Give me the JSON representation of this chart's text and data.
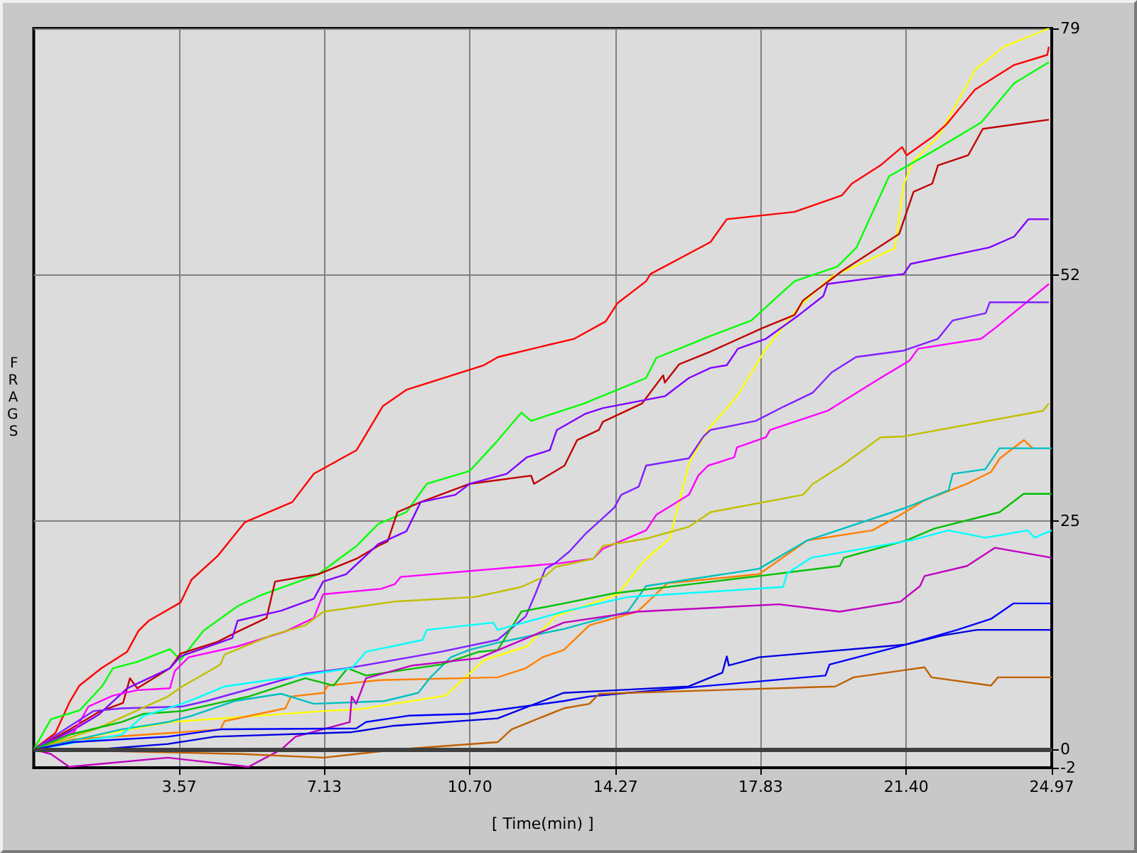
{
  "chart_data": {
    "type": "line",
    "xlabel": "[ Time(min) ]",
    "ylabel": "FRAGS",
    "xlim": [
      0,
      24.97
    ],
    "xticks": [
      3.57,
      7.13,
      {
        "value": 10.7,
        "label": "10.70"
      },
      14.27,
      17.83,
      {
        "value": 21.4,
        "label": "21.40"
      },
      24.97
    ],
    "ylim": [
      -2,
      79
    ],
    "yticks": [
      -2,
      0,
      25,
      52,
      79
    ],
    "grid": true,
    "line_style": "solid",
    "ref_lines": [
      {
        "axis": "y",
        "value": 0,
        "color": "#404040"
      }
    ],
    "series": [
      {
        "color": "#ffff00",
        "x": [
          0,
          0.99,
          3.35,
          7.1,
          7.98,
          10.1,
          11.05,
          12.1,
          12.8,
          14.32,
          15.0,
          15.6,
          16.07,
          16.53,
          17.25,
          17.96,
          18.77,
          19.57,
          21.12,
          21.34,
          21.58,
          22.18,
          23.1,
          23.8,
          24.9
        ],
        "values": [
          0,
          1.1,
          3.0,
          4.2,
          4.4,
          5.9,
          9.8,
          11.3,
          14.6,
          17.0,
          20.8,
          23.1,
          31.3,
          35.0,
          38.7,
          43.9,
          48.5,
          51.8,
          54.9,
          61.9,
          64.5,
          67.1,
          74.5,
          77,
          79
        ]
      },
      {
        "color": "#ff0000",
        "x": [
          0,
          0.53,
          0.88,
          1.12,
          1.66,
          2.29,
          2.57,
          2.82,
          3.6,
          3.87,
          4.51,
          5.18,
          6.34,
          6.87,
          7.92,
          8.56,
          9.14,
          11.04,
          11.39,
          13.26,
          14.03,
          14.32,
          15.02,
          15.13,
          15.97,
          16.6,
          17.0,
          18.66,
          19.82,
          20.07,
          20.77,
          21.3,
          21.41,
          22.04,
          22.39,
          23.09,
          24.05,
          24.86,
          24.9
        ],
        "values": [
          0,
          1.8,
          5.2,
          7.0,
          8.9,
          10.7,
          13.0,
          14.1,
          16.1,
          18.6,
          21.2,
          24.9,
          27.1,
          30.2,
          32.8,
          37.6,
          39.4,
          42.1,
          43.0,
          45.0,
          46.9,
          48.9,
          51.3,
          52.1,
          54.1,
          55.6,
          58.1,
          58.9,
          60.7,
          62.0,
          64.0,
          66.0,
          65.1,
          67.1,
          68.5,
          72.3,
          75.0,
          76.1,
          77
        ]
      },
      {
        "color": "#00ff00",
        "x": [
          0,
          0.42,
          1.13,
          1.69,
          1.94,
          2.54,
          3.34,
          3.6,
          4.16,
          5.0,
          5.57,
          6.98,
          7.92,
          8.45,
          9.14,
          9.64,
          10.69,
          11.33,
          11.96,
          12.2,
          13.5,
          15.02,
          15.27,
          15.83,
          16.6,
          17.6,
          18.66,
          19.71,
          20.18,
          20.98,
          22.04,
          23.24,
          24.05,
          24.9
        ],
        "values": [
          0,
          3.3,
          4.3,
          7.0,
          8.9,
          9.6,
          11.0,
          9.8,
          13.0,
          15.7,
          16.9,
          19.2,
          22.3,
          24.7,
          26.0,
          29.1,
          30.5,
          33.6,
          36.9,
          36.0,
          37.9,
          40.7,
          42.9,
          43.9,
          45.3,
          47.0,
          51.3,
          52.9,
          55.0,
          62.8,
          65.5,
          68.7,
          73.0,
          75.3
        ]
      },
      {
        "color": "#c00000",
        "x": [
          0,
          0.89,
          1.59,
          2.19,
          2.36,
          2.54,
          3.34,
          3.6,
          4.51,
          5.0,
          5.71,
          5.92,
          6.98,
          7.92,
          8.45,
          8.68,
          8.92,
          9.49,
          10.69,
          12.2,
          12.27,
          13.02,
          13.33,
          13.86,
          13.96,
          14.92,
          15.44,
          15.48,
          15.83,
          16.6,
          17.89,
          18.66,
          18.87,
          19.82,
          21.23,
          21.58,
          22.04,
          22.18,
          22.92,
          23.28,
          24.9
        ],
        "values": [
          0,
          2.2,
          4.1,
          5.1,
          7.8,
          6.7,
          8.9,
          10.5,
          11.8,
          12.9,
          14.4,
          18.4,
          19.2,
          20.9,
          22.3,
          22.8,
          26.0,
          27.1,
          29.1,
          30.0,
          29.1,
          31.1,
          33.9,
          35.0,
          35.9,
          37.9,
          41.0,
          40.2,
          42.2,
          43.6,
          46.2,
          47.6,
          49.2,
          52.4,
          56.5,
          61.1,
          62.0,
          64.0,
          65.1,
          68.0,
          69.0
        ]
      },
      {
        "color": "#8000ff",
        "x": [
          0,
          0.99,
          1.59,
          2.29,
          3.34,
          3.6,
          4.87,
          5.0,
          6.07,
          6.87,
          7.1,
          7.66,
          8.45,
          9.14,
          9.49,
          10.34,
          10.69,
          11.6,
          12.09,
          12.66,
          12.83,
          13.54,
          13.96,
          15.48,
          16.07,
          16.6,
          17.0,
          17.27,
          17.96,
          18.77,
          19.37,
          19.47,
          21.34,
          21.51,
          23.44,
          24.05,
          24.4,
          24.9
        ],
        "values": [
          0,
          2.2,
          3.8,
          6.7,
          8.9,
          10.2,
          12.2,
          14.1,
          15.2,
          16.5,
          18.4,
          19.2,
          22.5,
          23.9,
          27.1,
          27.9,
          29.1,
          30.2,
          32.0,
          32.8,
          35.0,
          36.8,
          37.4,
          38.7,
          40.7,
          41.8,
          42.1,
          43.9,
          45.0,
          47.6,
          49.7,
          51.0,
          52.1,
          53.2,
          55.0,
          56.2,
          58.1,
          58.1
        ]
      },
      {
        "color": "#ff00ff",
        "x": [
          0,
          0.99,
          1.34,
          1.94,
          2.54,
          3.34,
          3.46,
          3.8,
          5.0,
          6.16,
          6.87,
          7.1,
          8.52,
          8.85,
          9.0,
          12.9,
          13.72,
          13.96,
          15.02,
          15.27,
          16.07,
          16.3,
          16.54,
          17.18,
          17.25,
          17.96,
          18.06,
          19.47,
          20.77,
          21.48,
          21.69,
          23.24,
          23.59,
          24.9
        ],
        "values": [
          0,
          1.9,
          4.7,
          5.9,
          6.5,
          6.7,
          8.6,
          10.1,
          11.3,
          12.9,
          14.4,
          17.0,
          17.6,
          18.1,
          18.9,
          20.4,
          20.9,
          22.0,
          24.0,
          25.7,
          27.9,
          30.0,
          31.1,
          32.0,
          33.1,
          34.2,
          35.0,
          37.1,
          40.7,
          42.6,
          43.9,
          45.0,
          46.2,
          51.0
        ]
      },
      {
        "color": "#8020ff",
        "x": [
          0,
          1.46,
          2.15,
          3.64,
          4.23,
          6.66,
          7.7,
          9.99,
          11.38,
          12.07,
          12.31,
          12.55,
          12.79,
          13.14,
          13.55,
          14.24,
          14.41,
          14.84,
          15.02,
          16.07,
          16.43,
          16.6,
          17.71,
          18.41,
          19.11,
          19.57,
          20.17,
          21.34,
          22.18,
          22.54,
          23.35,
          23.45,
          24.9
        ],
        "values": [
          0,
          4.2,
          4.5,
          4.7,
          5.3,
          8.3,
          8.9,
          10.7,
          12.0,
          14.6,
          17.1,
          19.8,
          20.4,
          21.7,
          23.7,
          26.5,
          27.9,
          28.8,
          31.1,
          31.9,
          34.3,
          35.0,
          36.0,
          37.6,
          39.1,
          41.3,
          43.0,
          43.7,
          45.0,
          47.0,
          47.8,
          49.0,
          49.0
        ]
      },
      {
        "color": "#c0c000",
        "x": [
          0,
          1.56,
          3.29,
          3.64,
          4.23,
          4.58,
          4.68,
          5.83,
          6.66,
          7.11,
          8.84,
          10.82,
          11.96,
          12.55,
          12.8,
          13.72,
          13.96,
          15.02,
          16.07,
          16.6,
          18.87,
          19.11,
          19.82,
          20.77,
          21.34,
          24.75,
          24.9
        ],
        "values": [
          0,
          2.3,
          5.8,
          6.9,
          8.4,
          9.3,
          10.4,
          12.5,
          13.6,
          15.1,
          16.2,
          16.7,
          17.8,
          19.0,
          20.0,
          20.9,
          22.3,
          23.1,
          24.4,
          26.0,
          27.9,
          29.1,
          31.1,
          34.2,
          34.3,
          37.1,
          37.9
        ]
      },
      {
        "color": "#ff8000",
        "x": [
          0,
          0.97,
          3.64,
          4.58,
          4.68,
          6.17,
          6.31,
          7.11,
          7.21,
          8.5,
          11.38,
          12.07,
          12.48,
          13.0,
          13.63,
          14.81,
          15.54,
          17.79,
          18.62,
          18.97,
          20.57,
          21.26,
          21.85,
          22.89,
          23.48,
          23.7,
          24.29,
          24.5
        ],
        "values": [
          0,
          1.1,
          1.9,
          2.2,
          3.1,
          4.5,
          5.8,
          6.2,
          7.0,
          7.6,
          7.9,
          8.9,
          10.1,
          10.9,
          13.6,
          15.1,
          18.2,
          19.2,
          21.8,
          22.9,
          24.0,
          25.7,
          27.3,
          29.1,
          30.4,
          31.9,
          33.9,
          33.0
        ]
      },
      {
        "color": "#00c0c0",
        "x": [
          0,
          2.15,
          3.29,
          3.88,
          4.92,
          6.07,
          6.87,
          8.6,
          9.43,
          9.71,
          10.23,
          10.68,
          11.38,
          13.0,
          14.57,
          15.02,
          17.79,
          18.97,
          21.4,
          22.44,
          22.54,
          23.34,
          23.69,
          24.97
        ],
        "values": [
          0,
          2.2,
          3.0,
          3.7,
          5.3,
          6.1,
          5.0,
          5.3,
          6.2,
          7.8,
          10.1,
          10.9,
          11.7,
          13.2,
          15.1,
          17.9,
          19.8,
          22.9,
          26.5,
          28.4,
          30.2,
          30.7,
          33.0,
          33.0
        ]
      },
      {
        "color": "#00c000",
        "x": [
          0,
          0.87,
          2.15,
          2.7,
          3.64,
          4.44,
          5.27,
          6.66,
          7.35,
          7.7,
          8.15,
          9.99,
          10.92,
          11.38,
          11.96,
          13.0,
          14.22,
          17.79,
          19.77,
          19.87,
          21.4,
          22.09,
          23.69,
          24.28,
          24.97
        ],
        "values": [
          0,
          1.6,
          3.0,
          3.9,
          4.2,
          5.0,
          5.8,
          7.8,
          7.0,
          8.9,
          8.1,
          9.3,
          10.7,
          10.9,
          15.1,
          16.0,
          17.1,
          19.0,
          20.1,
          21.0,
          22.9,
          24.2,
          26.0,
          28.0,
          28.0
        ]
      },
      {
        "color": "#00ffff",
        "x": [
          0,
          2.15,
          2.7,
          3.64,
          4.09,
          4.68,
          7.8,
          8.15,
          9.54,
          9.64,
          11.27,
          11.38,
          13.0,
          14.57,
          18.38,
          18.48,
          19.07,
          21.5,
          22.44,
          23.34,
          24.38,
          24.55,
          24.97
        ],
        "values": [
          0,
          1.6,
          3.7,
          5.0,
          5.8,
          6.9,
          8.9,
          10.7,
          12.0,
          13.1,
          13.9,
          13.1,
          15.1,
          16.7,
          17.8,
          19.3,
          21.0,
          22.9,
          24.0,
          23.2,
          24.0,
          23.2,
          24.0
        ]
      },
      {
        "color": "#c000c0",
        "x": [
          0,
          0.42,
          0.87,
          3.29,
          5.27,
          6.07,
          6.42,
          7.75,
          7.8,
          7.91,
          8.15,
          9.29,
          10.92,
          13.0,
          14.81,
          18.28,
          19.77,
          21.26,
          21.74,
          21.85,
          22.89,
          23.58,
          24.97
        ],
        "values": [
          0,
          -0.5,
          -1.9,
          -0.9,
          -1.9,
          0,
          1.4,
          3.0,
          5.8,
          5.0,
          7.8,
          9.2,
          10.0,
          13.9,
          15.1,
          15.9,
          15.1,
          16.2,
          17.9,
          19.0,
          20.1,
          22.1,
          21.0
        ]
      },
      {
        "color": "#0000ff",
        "x": [
          0,
          0.97,
          3.29,
          4.58,
          7.91,
          8.15,
          9.19,
          10.68,
          13.0,
          13.63,
          14.57,
          19.42,
          19.52,
          21.4,
          22.65,
          23.48,
          24.03,
          24.97
        ],
        "values": [
          0,
          0.8,
          1.4,
          2.2,
          2.3,
          3.0,
          3.7,
          3.9,
          5.3,
          5.8,
          6.2,
          8.1,
          9.3,
          11.5,
          13.1,
          14.3,
          16.0,
          16.0
        ]
      },
      {
        "color": "#0000e0",
        "x": [
          0,
          1.56,
          3.29,
          4.44,
          7.8,
          8.84,
          11.38,
          13.0,
          14.33,
          16.06,
          16.89,
          17.0,
          17.05,
          17.79,
          21.4,
          22.3,
          23.13,
          24.97
        ],
        "values": [
          0,
          0,
          0.6,
          1.4,
          1.9,
          2.6,
          3.4,
          6.2,
          6.5,
          6.9,
          8.4,
          10.2,
          9.2,
          10.1,
          11.5,
          12.5,
          13.1,
          13.1
        ]
      },
      {
        "color": "#c06000",
        "x": [
          0,
          5.1,
          7.11,
          7.91,
          8.95,
          11.38,
          11.72,
          13.0,
          13.63,
          13.87,
          19.66,
          20.11,
          21.85,
          22.02,
          23.48,
          23.65,
          24.97
        ],
        "values": [
          0,
          -0.5,
          -0.9,
          -0.5,
          0,
          0.8,
          2.2,
          4.5,
          5.0,
          6.1,
          6.9,
          7.9,
          9.0,
          7.9,
          7.0,
          7.9,
          7.9
        ]
      }
    ]
  }
}
